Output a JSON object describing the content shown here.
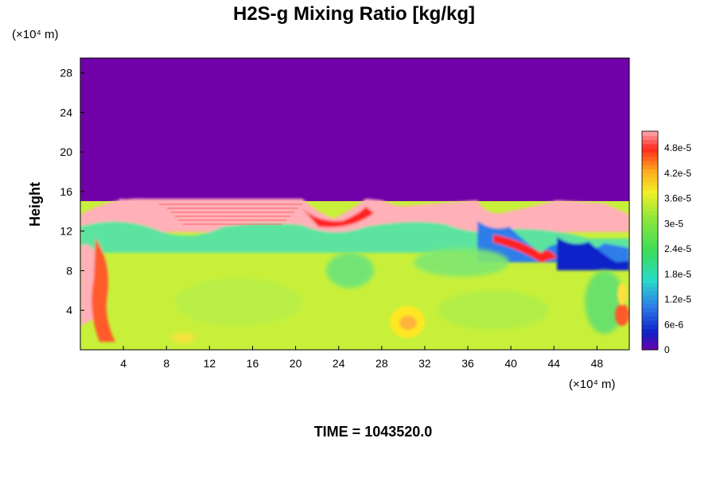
{
  "chart_data": {
    "type": "heatmap",
    "title": "H2S-g Mixing Ratio [kg/kg]",
    "ylabel": "Height",
    "y_unit_label": "(×10⁴ m)",
    "x_unit_label": "(×10⁴ m)",
    "footer": "TIME = 1043520.0",
    "xlim": [
      0,
      51
    ],
    "ylim": [
      0,
      29.5
    ],
    "x_ticks": [
      "4",
      "8",
      "12",
      "16",
      "20",
      "24",
      "28",
      "32",
      "36",
      "40",
      "44",
      "48"
    ],
    "y_ticks": [
      "4",
      "8",
      "12",
      "16",
      "20",
      "24",
      "28"
    ],
    "colorbar": {
      "vmin": 0,
      "vmax": 5.2e-05,
      "labels": [
        "4.8e-5",
        "4.2e-5",
        "3.6e-5",
        "3e-5",
        "2.4e-5",
        "1.8e-5",
        "1.2e-5",
        "6e-6",
        "0"
      ]
    },
    "field_summary": {
      "upper_region_value": 0,
      "upper_region_bottom_height": 15.5,
      "lower_region_typical_value": 3.5e-05,
      "high_value_patch": {
        "x": 30.5,
        "y": 2.8,
        "value": 3.9e-05
      }
    }
  }
}
